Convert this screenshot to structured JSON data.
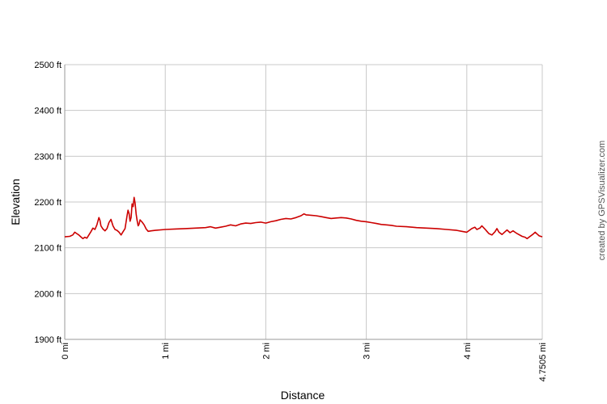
{
  "chart_data": {
    "type": "line",
    "xlabel": "Distance",
    "ylabel": "Elevation",
    "xlim": [
      0,
      4.7505
    ],
    "ylim": [
      1900,
      2500
    ],
    "grid": true,
    "x_ticks": [
      {
        "value": 0,
        "label": "0 mi"
      },
      {
        "value": 1,
        "label": "1 mi"
      },
      {
        "value": 2,
        "label": "2 mi"
      },
      {
        "value": 3,
        "label": "3 mi"
      },
      {
        "value": 4,
        "label": "4 mi"
      },
      {
        "value": 4.7505,
        "label": "4.7505 mi"
      }
    ],
    "y_ticks": [
      {
        "value": 1900,
        "label": "1900 ft"
      },
      {
        "value": 2000,
        "label": "2000 ft"
      },
      {
        "value": 2100,
        "label": "2100 ft"
      },
      {
        "value": 2200,
        "label": "2200 ft"
      },
      {
        "value": 2300,
        "label": "2300 ft"
      },
      {
        "value": 2400,
        "label": "2400 ft"
      },
      {
        "value": 2500,
        "label": "2500 ft"
      }
    ],
    "series": [
      {
        "color": "#cc0000",
        "points": [
          [
            0.0,
            2124
          ],
          [
            0.05,
            2125
          ],
          [
            0.08,
            2128
          ],
          [
            0.1,
            2134
          ],
          [
            0.12,
            2131
          ],
          [
            0.14,
            2128
          ],
          [
            0.16,
            2124
          ],
          [
            0.18,
            2120
          ],
          [
            0.2,
            2123
          ],
          [
            0.22,
            2121
          ],
          [
            0.24,
            2128
          ],
          [
            0.26,
            2135
          ],
          [
            0.28,
            2143
          ],
          [
            0.3,
            2140
          ],
          [
            0.32,
            2150
          ],
          [
            0.34,
            2166
          ],
          [
            0.35,
            2160
          ],
          [
            0.36,
            2148
          ],
          [
            0.38,
            2141
          ],
          [
            0.4,
            2137
          ],
          [
            0.42,
            2142
          ],
          [
            0.44,
            2155
          ],
          [
            0.46,
            2162
          ],
          [
            0.48,
            2148
          ],
          [
            0.5,
            2140
          ],
          [
            0.52,
            2138
          ],
          [
            0.54,
            2134
          ],
          [
            0.56,
            2128
          ],
          [
            0.58,
            2135
          ],
          [
            0.6,
            2142
          ],
          [
            0.62,
            2170
          ],
          [
            0.63,
            2182
          ],
          [
            0.64,
            2175
          ],
          [
            0.65,
            2158
          ],
          [
            0.66,
            2166
          ],
          [
            0.67,
            2196
          ],
          [
            0.68,
            2190
          ],
          [
            0.69,
            2210
          ],
          [
            0.7,
            2198
          ],
          [
            0.71,
            2174
          ],
          [
            0.72,
            2160
          ],
          [
            0.73,
            2148
          ],
          [
            0.74,
            2152
          ],
          [
            0.75,
            2161
          ],
          [
            0.77,
            2156
          ],
          [
            0.79,
            2150
          ],
          [
            0.81,
            2141
          ],
          [
            0.83,
            2136
          ],
          [
            0.86,
            2137
          ],
          [
            0.9,
            2138
          ],
          [
            1.0,
            2140
          ],
          [
            1.1,
            2141
          ],
          [
            1.2,
            2142
          ],
          [
            1.3,
            2143
          ],
          [
            1.4,
            2144
          ],
          [
            1.45,
            2146
          ],
          [
            1.5,
            2143
          ],
          [
            1.55,
            2145
          ],
          [
            1.6,
            2147
          ],
          [
            1.65,
            2150
          ],
          [
            1.7,
            2148
          ],
          [
            1.75,
            2152
          ],
          [
            1.8,
            2154
          ],
          [
            1.85,
            2153
          ],
          [
            1.9,
            2155
          ],
          [
            1.95,
            2156
          ],
          [
            2.0,
            2154
          ],
          [
            2.05,
            2157
          ],
          [
            2.1,
            2159
          ],
          [
            2.15,
            2162
          ],
          [
            2.2,
            2164
          ],
          [
            2.25,
            2163
          ],
          [
            2.3,
            2166
          ],
          [
            2.35,
            2170
          ],
          [
            2.38,
            2174
          ],
          [
            2.4,
            2172
          ],
          [
            2.45,
            2171
          ],
          [
            2.5,
            2170
          ],
          [
            2.55,
            2168
          ],
          [
            2.6,
            2166
          ],
          [
            2.65,
            2164
          ],
          [
            2.7,
            2165
          ],
          [
            2.75,
            2166
          ],
          [
            2.8,
            2165
          ],
          [
            2.85,
            2163
          ],
          [
            2.9,
            2160
          ],
          [
            2.95,
            2158
          ],
          [
            3.0,
            2157
          ],
          [
            3.05,
            2155
          ],
          [
            3.1,
            2153
          ],
          [
            3.15,
            2151
          ],
          [
            3.2,
            2150
          ],
          [
            3.25,
            2149
          ],
          [
            3.3,
            2147
          ],
          [
            3.4,
            2146
          ],
          [
            3.5,
            2144
          ],
          [
            3.6,
            2143
          ],
          [
            3.7,
            2142
          ],
          [
            3.8,
            2140
          ],
          [
            3.9,
            2138
          ],
          [
            3.95,
            2136
          ],
          [
            4.0,
            2134
          ],
          [
            4.05,
            2142
          ],
          [
            4.08,
            2145
          ],
          [
            4.1,
            2140
          ],
          [
            4.13,
            2143
          ],
          [
            4.15,
            2148
          ],
          [
            4.18,
            2141
          ],
          [
            4.2,
            2136
          ],
          [
            4.22,
            2131
          ],
          [
            4.25,
            2128
          ],
          [
            4.28,
            2135
          ],
          [
            4.3,
            2142
          ],
          [
            4.32,
            2134
          ],
          [
            4.35,
            2129
          ],
          [
            4.38,
            2135
          ],
          [
            4.4,
            2139
          ],
          [
            4.43,
            2133
          ],
          [
            4.46,
            2137
          ],
          [
            4.5,
            2131
          ],
          [
            4.55,
            2125
          ],
          [
            4.58,
            2123
          ],
          [
            4.6,
            2120
          ],
          [
            4.63,
            2125
          ],
          [
            4.66,
            2130
          ],
          [
            4.68,
            2134
          ],
          [
            4.7,
            2130
          ],
          [
            4.72,
            2126
          ],
          [
            4.7505,
            2124
          ]
        ]
      }
    ]
  },
  "credit": "created by GPSVisualizer.com"
}
